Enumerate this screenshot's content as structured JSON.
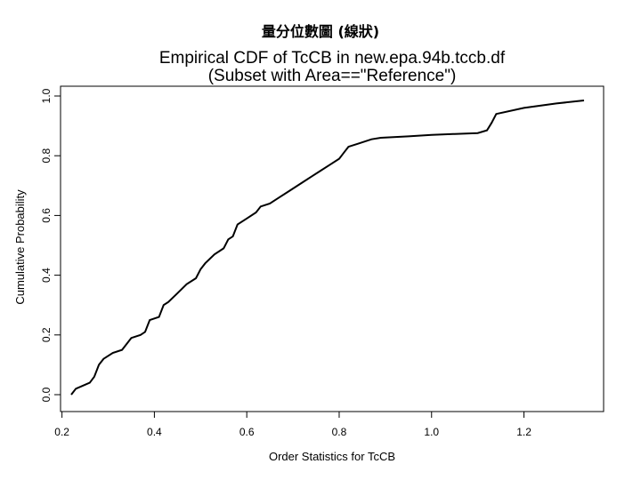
{
  "slide": {
    "title": "量分位數圖 (線狀)"
  },
  "chart_data": {
    "type": "line",
    "title": "Empirical CDF of TcCB in new.epa.94b.tccb.df",
    "subtitle": "(Subset with Area==\"Reference\")",
    "xlabel": "Order Statistics for TcCB",
    "ylabel": "Cumulative Probability",
    "xlim": [
      0.2,
      1.35
    ],
    "ylim": [
      0.0,
      1.0
    ],
    "x_ticks": [
      0.2,
      0.4,
      0.6,
      0.8,
      1.0,
      1.2
    ],
    "x_tick_labels": [
      "0.2",
      "0.4",
      "0.6",
      "0.8",
      "1.0",
      "1.2"
    ],
    "y_ticks": [
      0.0,
      0.2,
      0.4,
      0.6,
      0.8,
      1.0
    ],
    "y_tick_labels": [
      "0.0",
      "0.2",
      "0.4",
      "0.6",
      "0.8",
      "1.0"
    ],
    "grid": false,
    "series": [
      {
        "x": [
          0.22,
          0.23,
          0.26,
          0.27,
          0.28,
          0.29,
          0.31,
          0.33,
          0.35,
          0.37,
          0.38,
          0.39,
          0.41,
          0.42,
          0.43,
          0.45,
          0.47,
          0.49,
          0.5,
          0.51,
          0.53,
          0.55,
          0.56,
          0.57,
          0.58,
          0.6,
          0.62,
          0.63,
          0.65,
          0.67,
          0.69,
          0.72,
          0.74,
          0.76,
          0.78,
          0.8,
          0.81,
          0.82,
          0.84,
          0.87,
          0.89,
          0.95,
          1.0,
          1.05,
          1.1,
          1.12,
          1.13,
          1.14,
          1.2,
          1.27,
          1.33
        ],
        "y": [
          0.0,
          0.02,
          0.04,
          0.06,
          0.1,
          0.12,
          0.14,
          0.15,
          0.19,
          0.2,
          0.21,
          0.25,
          0.26,
          0.3,
          0.31,
          0.34,
          0.37,
          0.39,
          0.42,
          0.44,
          0.47,
          0.49,
          0.52,
          0.53,
          0.57,
          0.59,
          0.61,
          0.63,
          0.64,
          0.66,
          0.68,
          0.71,
          0.73,
          0.75,
          0.77,
          0.79,
          0.81,
          0.83,
          0.84,
          0.855,
          0.86,
          0.865,
          0.87,
          0.873,
          0.876,
          0.885,
          0.91,
          0.94,
          0.96,
          0.975,
          0.985
        ]
      }
    ]
  }
}
